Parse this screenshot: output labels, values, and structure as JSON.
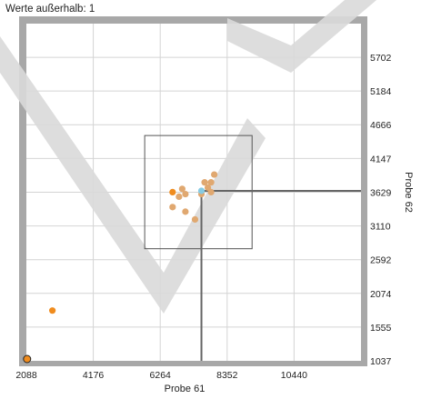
{
  "chart_data": {
    "type": "scatter",
    "annotation": "Werte außerhalb: 1",
    "xlabel": "Probe 61",
    "ylabel": "Probe 62",
    "xlim": [
      2088,
      12528
    ],
    "ylim": [
      1037,
      6220
    ],
    "x_ticks": [
      2088,
      4176,
      6264,
      8352,
      10440
    ],
    "y_ticks": [
      1037,
      1555,
      2074,
      2592,
      3110,
      3629,
      4147,
      4666,
      5184,
      5702
    ],
    "grid": true,
    "points": [
      {
        "x": 2900,
        "y": 1810,
        "kind": "orange"
      },
      {
        "x": 2110,
        "y": 1065,
        "kind": "outlier"
      },
      {
        "x": 6650,
        "y": 3630,
        "kind": "orange"
      },
      {
        "x": 6650,
        "y": 3400,
        "kind": "tan"
      },
      {
        "x": 6850,
        "y": 3560,
        "kind": "tan"
      },
      {
        "x": 6950,
        "y": 3680,
        "kind": "tan"
      },
      {
        "x": 7050,
        "y": 3600,
        "kind": "tan"
      },
      {
        "x": 7050,
        "y": 3330,
        "kind": "tan"
      },
      {
        "x": 7350,
        "y": 3210,
        "kind": "tan"
      },
      {
        "x": 7650,
        "y": 3780,
        "kind": "tan"
      },
      {
        "x": 7750,
        "y": 3700,
        "kind": "tan"
      },
      {
        "x": 7850,
        "y": 3780,
        "kind": "tan"
      },
      {
        "x": 7950,
        "y": 3900,
        "kind": "tan"
      },
      {
        "x": 7850,
        "y": 3630,
        "kind": "tan"
      },
      {
        "x": 7550,
        "y": 3600,
        "kind": "tan"
      },
      {
        "x": 7550,
        "y": 3650,
        "kind": "selected"
      }
    ],
    "selection_box": {
      "x": [
        5780,
        9130
      ],
      "y": [
        2760,
        4500
      ]
    },
    "crosshair": {
      "x": 7550,
      "y": 3650
    },
    "colors": {
      "orange": "#f08c1e",
      "tan": "#e0a870",
      "selected": "#86cbe3",
      "watermark": "#d9d9d9",
      "frame": "#a8a8a8",
      "grid": "#d4d4d4"
    }
  }
}
